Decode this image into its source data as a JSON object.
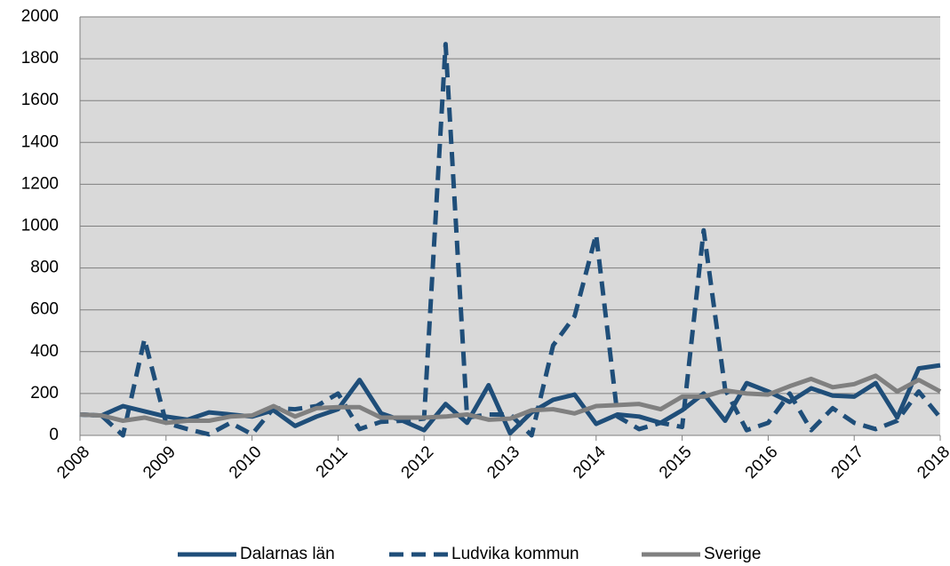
{
  "chart_data": {
    "type": "line",
    "x": [
      2008,
      2008.25,
      2008.5,
      2008.75,
      2009,
      2009.25,
      2009.5,
      2009.75,
      2010,
      2010.25,
      2010.5,
      2010.75,
      2011,
      2011.25,
      2011.5,
      2011.75,
      2012,
      2012.25,
      2012.5,
      2012.75,
      2013,
      2013.25,
      2013.5,
      2013.75,
      2014,
      2014.25,
      2014.5,
      2014.75,
      2015,
      2015.25,
      2015.5,
      2015.75,
      2016,
      2016.25,
      2016.5,
      2016.75,
      2017,
      2017.25,
      2017.5,
      2017.75,
      2018
    ],
    "series": [
      {
        "name": "Dalarnas län",
        "color": "#1f4e79",
        "line_style": "solid",
        "values": [
          100,
          95,
          140,
          115,
          90,
          75,
          110,
          100,
          90,
          120,
          45,
          90,
          125,
          265,
          105,
          70,
          25,
          150,
          60,
          240,
          10,
          110,
          170,
          195,
          55,
          100,
          90,
          60,
          120,
          200,
          70,
          250,
          210,
          160,
          225,
          190,
          185,
          250,
          85,
          320,
          335
        ]
      },
      {
        "name": "Ludvika kommun",
        "color": "#1f4e79",
        "line_style": "dashed",
        "values": [
          100,
          95,
          0,
          460,
          60,
          30,
          5,
          60,
          5,
          130,
          125,
          140,
          200,
          30,
          65,
          70,
          80,
          1870,
          85,
          100,
          100,
          0,
          430,
          570,
          960,
          90,
          30,
          60,
          40,
          980,
          220,
          25,
          60,
          200,
          25,
          130,
          60,
          30,
          70,
          210,
          85
        ]
      },
      {
        "name": "Sverige",
        "color": "#808080",
        "line_style": "solid",
        "values": [
          100,
          95,
          70,
          85,
          60,
          70,
          70,
          90,
          95,
          140,
          90,
          130,
          135,
          135,
          85,
          85,
          85,
          90,
          100,
          75,
          80,
          120,
          125,
          105,
          140,
          145,
          150,
          125,
          185,
          185,
          215,
          200,
          195,
          235,
          270,
          230,
          245,
          285,
          210,
          265,
          210
        ]
      }
    ],
    "xlim": [
      2008,
      2018
    ],
    "xticks": [
      2008,
      2009,
      2010,
      2011,
      2012,
      2013,
      2014,
      2015,
      2016,
      2017,
      2018
    ],
    "ylim": [
      0,
      2000
    ],
    "yticks": [
      0,
      200,
      400,
      600,
      800,
      1000,
      1200,
      1400,
      1600,
      1800,
      2000
    ],
    "grid": true,
    "legend": "bottom"
  }
}
